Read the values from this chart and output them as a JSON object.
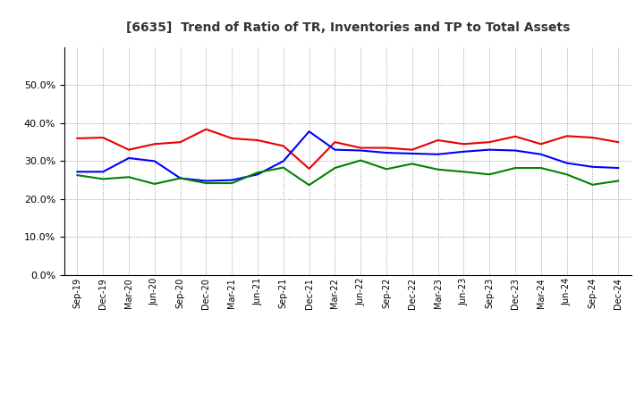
{
  "title": "[6635]  Trend of Ratio of TR, Inventories and TP to Total Assets",
  "labels": [
    "Sep-19",
    "Dec-19",
    "Mar-20",
    "Jun-20",
    "Sep-20",
    "Dec-20",
    "Mar-21",
    "Jun-21",
    "Sep-21",
    "Dec-21",
    "Mar-22",
    "Jun-22",
    "Sep-22",
    "Dec-22",
    "Mar-23",
    "Jun-23",
    "Sep-23",
    "Dec-23",
    "Mar-24",
    "Jun-24",
    "Sep-24",
    "Dec-24"
  ],
  "trade_receivables": [
    0.36,
    0.362,
    0.33,
    0.345,
    0.35,
    0.384,
    0.36,
    0.355,
    0.34,
    0.28,
    0.35,
    0.335,
    0.335,
    0.33,
    0.355,
    0.345,
    0.35,
    0.365,
    0.345,
    0.366,
    0.362,
    0.35
  ],
  "inventories": [
    0.272,
    0.272,
    0.308,
    0.3,
    0.255,
    0.248,
    0.25,
    0.265,
    0.3,
    0.378,
    0.33,
    0.328,
    0.322,
    0.32,
    0.318,
    0.325,
    0.33,
    0.328,
    0.318,
    0.295,
    0.285,
    0.282
  ],
  "trade_payables": [
    0.263,
    0.253,
    0.258,
    0.24,
    0.255,
    0.242,
    0.242,
    0.27,
    0.283,
    0.237,
    0.282,
    0.302,
    0.279,
    0.293,
    0.278,
    0.272,
    0.265,
    0.282,
    0.282,
    0.265,
    0.238,
    0.248
  ],
  "tr_color": "#e80000",
  "inv_color": "#0000ff",
  "tp_color": "#008000",
  "ylim": [
    0.0,
    0.6
  ],
  "yticks": [
    0.0,
    0.1,
    0.2,
    0.3,
    0.4,
    0.5
  ],
  "bg_color": "#ffffff",
  "plot_bg_color": "#ffffff",
  "grid_color": "#808080",
  "linewidth": 1.5
}
